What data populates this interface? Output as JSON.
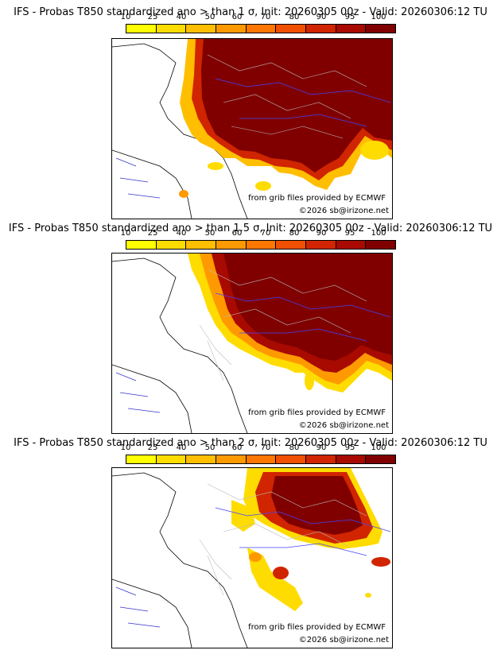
{
  "panels": [
    {
      "title": "IFS - Probas T850  standardized ano > than 1 σ, Init: 20260305 00z - Valid: 20260306:12 TU"
    },
    {
      "title": "IFS - Probas T850  standardized ano > than 1.5 σ, Init: 20260305 00z - Valid: 20260306:12 TU"
    },
    {
      "title": "IFS - Probas T850  standardized ano > than 2 σ, Init: 20260305 00z - Valid: 20260306:12 TU"
    }
  ],
  "colorbar": {
    "ticks": [
      "10",
      "25",
      "40",
      "50",
      "60",
      "70",
      "80",
      "90",
      "95",
      "100"
    ],
    "colors": [
      "#ffff00",
      "#ffdc00",
      "#ffbe00",
      "#ff9900",
      "#ff7700",
      "#f05000",
      "#d02500",
      "#a80a00",
      "#800000",
      "#5a0000"
    ]
  },
  "credits": {
    "source": "from grib files provided by ECMWF",
    "copyright": "©2026 sb@irizone.net"
  }
}
